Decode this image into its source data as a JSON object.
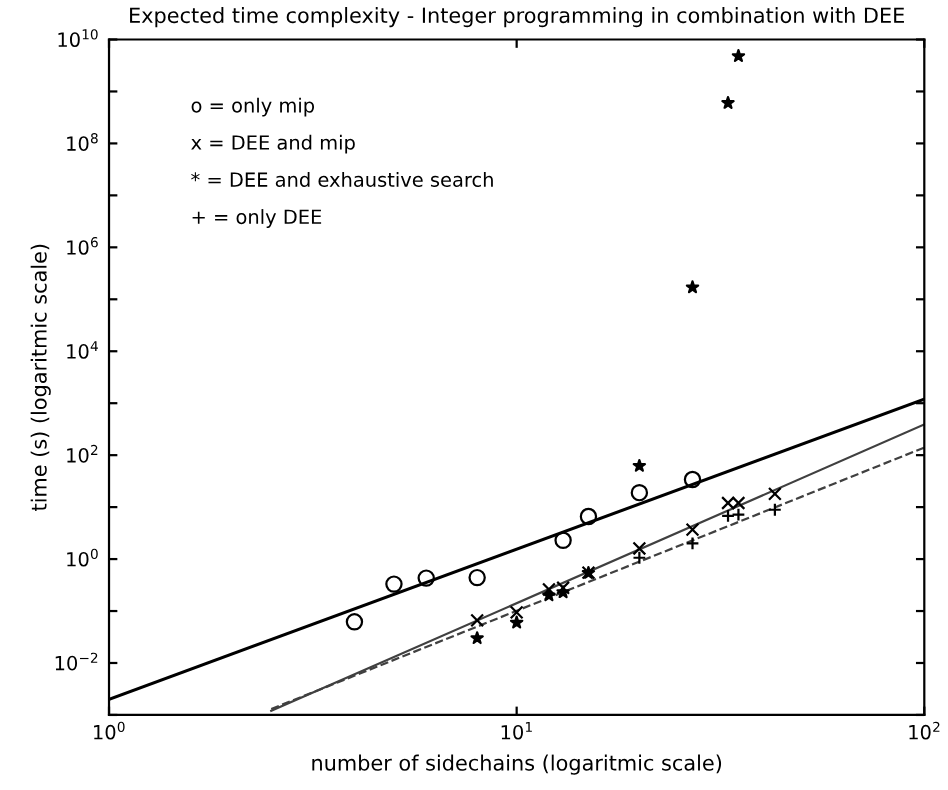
{
  "chart_data": {
    "type": "scatter",
    "title": "Expected time complexity - Integer programming in combination with DEE",
    "xlabel": "number of sidechains (logaritmic scale)",
    "ylabel": "time (s) (logaritmic scale)",
    "log": "xy",
    "grid": false,
    "legend": false,
    "xlim": [
      1,
      100
    ],
    "ylim": [
      0.001,
      10000000000
    ],
    "xticks": [
      {
        "value": 1,
        "label": "10$^{0}$"
      },
      {
        "value": 10,
        "label": "10$^{1}$"
      },
      {
        "value": 100,
        "label": "10$^{2}$"
      }
    ],
    "yticks": [
      {
        "value": 0.001,
        "label": null
      },
      {
        "value": 0.01,
        "label": "10$^{−2}$"
      },
      {
        "value": 0.1,
        "label": null
      },
      {
        "value": 1,
        "label": "10$^{0}$"
      },
      {
        "value": 10,
        "label": null
      },
      {
        "value": 100,
        "label": "10$^{2}$"
      },
      {
        "value": 1000,
        "label": null
      },
      {
        "value": 10000,
        "label": "10$^{4}$"
      },
      {
        "value": 100000,
        "label": null
      },
      {
        "value": 1000000,
        "label": "10$^{6}$"
      },
      {
        "value": 10000000,
        "label": null
      },
      {
        "value": 100000000,
        "label": "10$^{8}$"
      },
      {
        "value": 1000000000,
        "label": null
      },
      {
        "value": 10000000000,
        "label": "10$^{10}$"
      }
    ],
    "annotations": [
      "o = only mip",
      "x = DEE and mip",
      "* = DEE and exhaustive search",
      "+ = only DEE"
    ],
    "series": [
      {
        "marker": "circle",
        "color": "#000000",
        "x": [
          4,
          5,
          6,
          8,
          13,
          15,
          20,
          27
        ],
        "values": [
          0.062,
          0.33,
          0.43,
          0.44,
          2.3,
          6.6,
          19,
          34
        ]
      },
      {
        "marker": "cross",
        "color": "#000000",
        "x": [
          8,
          10,
          12,
          13,
          15,
          20,
          27,
          33,
          35,
          43
        ],
        "values": [
          0.066,
          0.094,
          0.26,
          0.28,
          0.55,
          1.6,
          3.7,
          12,
          12,
          18
        ]
      },
      {
        "marker": "star",
        "color": "#000000",
        "x": [
          8,
          10,
          12,
          13,
          15,
          20,
          27,
          33,
          35
        ],
        "values": [
          0.03,
          0.06,
          0.2,
          0.23,
          0.54,
          62,
          170000,
          600000000,
          4800000000
        ]
      },
      {
        "marker": "plus",
        "color": "#000000",
        "x": [
          20,
          27,
          33,
          35,
          43
        ],
        "values": [
          1.06,
          2.0,
          6.8,
          7.2,
          8.9
        ]
      },
      {
        "type": "line",
        "line_style": "solid",
        "color": "#000000",
        "x": [
          1,
          100
        ],
        "values": [
          0.002,
          1200
        ]
      },
      {
        "type": "line",
        "line_style": "solid",
        "color": "#404040",
        "x": [
          2.5,
          100
        ],
        "values": [
          0.0012,
          390
        ]
      },
      {
        "type": "line",
        "line_style": "dashed",
        "color": "#404040",
        "x": [
          2.5,
          100
        ],
        "values": [
          0.0013,
          140
        ]
      }
    ]
  }
}
